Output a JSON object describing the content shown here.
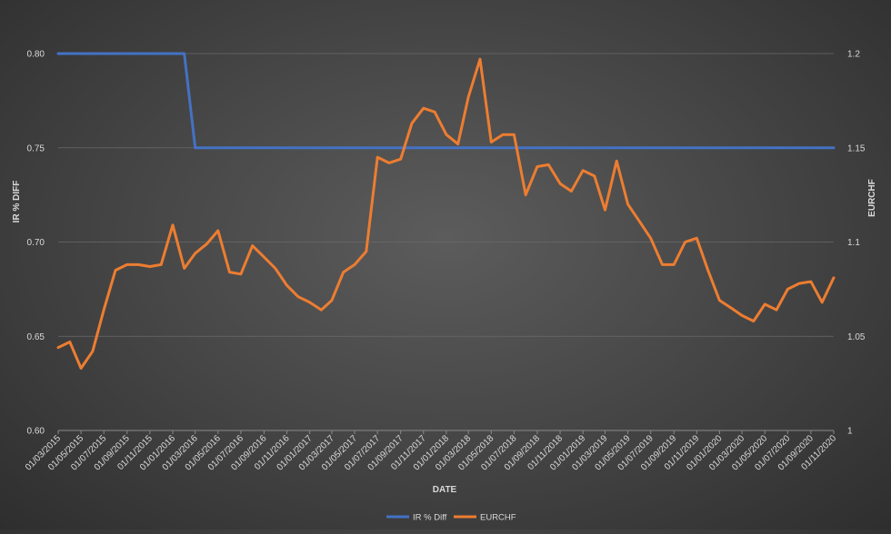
{
  "chart_data": {
    "type": "line",
    "xlabel": "DATE",
    "ylabel_left": "IR % DIFF",
    "ylabel_right": "EURCHF",
    "ylim_left": [
      0.6,
      0.8
    ],
    "ylim_right": [
      1,
      1.2
    ],
    "yticks_left": [
      "0.60",
      "0.65",
      "0.70",
      "0.75",
      "0.80"
    ],
    "yticks_right": [
      "1",
      "1.05",
      "1.1",
      "1.15",
      "1.2"
    ],
    "grid": "horizontal",
    "legend_position": "bottom",
    "categories": [
      "01/03/2015",
      "01/05/2015",
      "01/07/2015",
      "01/09/2015",
      "01/11/2015",
      "01/01/2016",
      "01/03/2016",
      "01/05/2016",
      "01/07/2016",
      "01/09/2016",
      "01/11/2016",
      "01/01/2017",
      "01/03/2017",
      "01/05/2017",
      "01/07/2017",
      "01/09/2017",
      "01/11/2017",
      "01/01/2018",
      "01/03/2018",
      "01/05/2018",
      "01/07/2018",
      "01/09/2018",
      "01/11/2018",
      "01/01/2019",
      "01/03/2019",
      "01/05/2019",
      "01/07/2019",
      "01/09/2019",
      "01/11/2019",
      "01/01/2020",
      "01/03/2020",
      "01/05/2020",
      "01/07/2020",
      "01/09/2020",
      "01/11/2020"
    ],
    "series": [
      {
        "name": "IR % Diff",
        "axis": "left",
        "color": "#4472c4",
        "x": [
          "01/03/2015",
          "01/05/2015",
          "01/07/2015",
          "01/09/2015",
          "01/11/2015",
          "01/01/2016",
          "01/02/2016",
          "01/03/2016",
          "01/05/2016",
          "01/07/2016",
          "01/09/2016",
          "01/11/2016",
          "01/01/2017",
          "01/03/2017",
          "01/05/2017",
          "01/07/2017",
          "01/09/2017",
          "01/11/2017",
          "01/01/2018",
          "01/03/2018",
          "01/05/2018",
          "01/07/2018",
          "01/09/2018",
          "01/11/2018",
          "01/01/2019",
          "01/03/2019",
          "01/05/2019",
          "01/07/2019",
          "01/09/2019",
          "01/11/2019",
          "01/01/2020",
          "01/03/2020",
          "01/05/2020",
          "01/07/2020",
          "01/09/2020",
          "01/11/2020"
        ],
        "values": [
          0.8,
          0.8,
          0.8,
          0.8,
          0.8,
          0.8,
          0.8,
          0.75,
          0.75,
          0.75,
          0.75,
          0.75,
          0.75,
          0.75,
          0.75,
          0.75,
          0.75,
          0.75,
          0.75,
          0.75,
          0.75,
          0.75,
          0.75,
          0.75,
          0.75,
          0.75,
          0.75,
          0.75,
          0.75,
          0.75,
          0.75,
          0.75,
          0.75,
          0.75,
          0.75,
          0.75
        ]
      },
      {
        "name": "EURCHF",
        "axis": "right",
        "color": "#ed7d31",
        "x": [
          "01/03/2015",
          "01/04/2015",
          "01/05/2015",
          "01/06/2015",
          "01/07/2015",
          "01/08/2015",
          "01/09/2015",
          "01/10/2015",
          "01/11/2015",
          "01/12/2015",
          "01/01/2016",
          "01/02/2016",
          "01/03/2016",
          "01/04/2016",
          "01/05/2016",
          "01/06/2016",
          "01/07/2016",
          "01/08/2016",
          "01/09/2016",
          "01/10/2016",
          "01/11/2016",
          "01/12/2016",
          "01/01/2017",
          "01/02/2017",
          "01/03/2017",
          "01/04/2017",
          "01/05/2017",
          "01/06/2017",
          "01/07/2017",
          "01/08/2017",
          "01/09/2017",
          "01/10/2017",
          "01/11/2017",
          "01/12/2017",
          "01/01/2018",
          "01/02/2018",
          "01/03/2018",
          "01/04/2018",
          "01/05/2018",
          "01/06/2018",
          "01/07/2018",
          "01/08/2018",
          "01/09/2018",
          "01/10/2018",
          "01/11/2018",
          "01/12/2018",
          "01/01/2019",
          "01/02/2019",
          "01/03/2019",
          "01/04/2019",
          "01/05/2019",
          "01/06/2019",
          "01/07/2019",
          "01/08/2019",
          "01/09/2019",
          "01/10/2019",
          "01/11/2019",
          "01/12/2019",
          "01/01/2020",
          "01/02/2020",
          "01/03/2020",
          "01/04/2020",
          "01/05/2020",
          "01/06/2020",
          "01/07/2020",
          "01/08/2020",
          "01/09/2020",
          "01/10/2020",
          "01/11/2020"
        ],
        "values": [
          1.044,
          1.047,
          1.033,
          1.042,
          1.064,
          1.085,
          1.088,
          1.088,
          1.087,
          1.088,
          1.109,
          1.086,
          1.094,
          1.099,
          1.106,
          1.084,
          1.083,
          1.098,
          1.092,
          1.086,
          1.077,
          1.071,
          1.068,
          1.064,
          1.069,
          1.084,
          1.088,
          1.095,
          1.145,
          1.142,
          1.144,
          1.163,
          1.171,
          1.169,
          1.157,
          1.152,
          1.177,
          1.197,
          1.153,
          1.157,
          1.157,
          1.125,
          1.14,
          1.141,
          1.131,
          1.127,
          1.138,
          1.135,
          1.117,
          1.143,
          1.12,
          1.111,
          1.102,
          1.088,
          1.088,
          1.1,
          1.102,
          1.085,
          1.069,
          1.065,
          1.061,
          1.058,
          1.067,
          1.064,
          1.075,
          1.078,
          1.079,
          1.068,
          1.081
        ]
      }
    ]
  }
}
